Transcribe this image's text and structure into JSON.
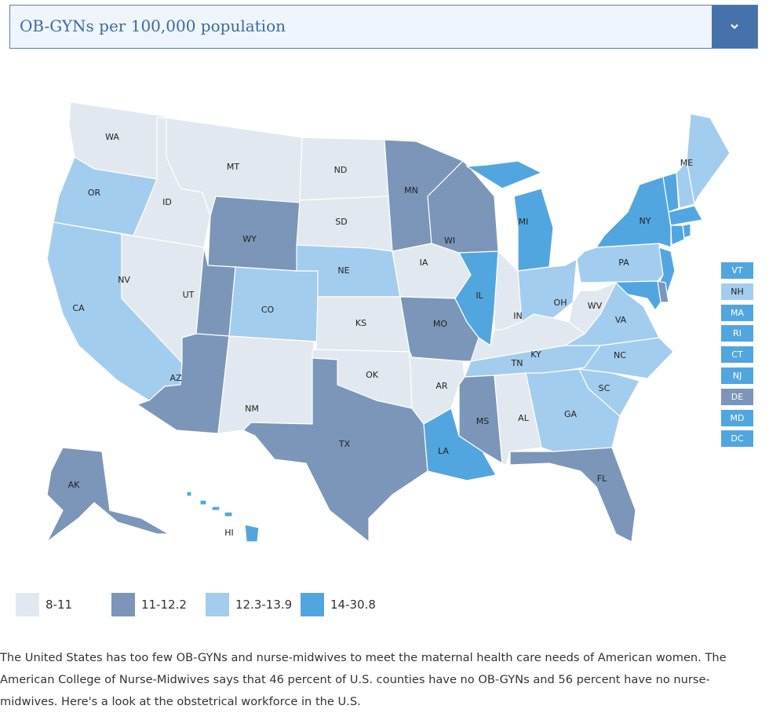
{
  "header": {
    "title": "OB-GYNs per 100,000 population",
    "dropdown_icon": "chevron-down-icon"
  },
  "colors": {
    "bin1": "#e1e8ef",
    "bin2": "#7b96b8",
    "bin3": "#a3cdee",
    "bin4": "#52a6e0",
    "stroke": "#ffffff"
  },
  "legend": [
    {
      "label": "8-11",
      "bin": "bin1"
    },
    {
      "label": "11-12.2",
      "bin": "bin2"
    },
    {
      "label": "12.3-13.9",
      "bin": "bin3"
    },
    {
      "label": "14-30.8",
      "bin": "bin4"
    }
  ],
  "states": [
    {
      "id": "WA",
      "bin": "bin1"
    },
    {
      "id": "OR",
      "bin": "bin3"
    },
    {
      "id": "CA",
      "bin": "bin3"
    },
    {
      "id": "NV",
      "bin": "bin1"
    },
    {
      "id": "ID",
      "bin": "bin1"
    },
    {
      "id": "MT",
      "bin": "bin1"
    },
    {
      "id": "WY",
      "bin": "bin2"
    },
    {
      "id": "UT",
      "bin": "bin2"
    },
    {
      "id": "AZ",
      "bin": "bin2"
    },
    {
      "id": "CO",
      "bin": "bin3"
    },
    {
      "id": "NM",
      "bin": "bin1"
    },
    {
      "id": "ND",
      "bin": "bin1"
    },
    {
      "id": "SD",
      "bin": "bin1"
    },
    {
      "id": "NE",
      "bin": "bin3"
    },
    {
      "id": "KS",
      "bin": "bin1"
    },
    {
      "id": "OK",
      "bin": "bin1"
    },
    {
      "id": "TX",
      "bin": "bin2"
    },
    {
      "id": "MN",
      "bin": "bin2"
    },
    {
      "id": "IA",
      "bin": "bin1"
    },
    {
      "id": "MO",
      "bin": "bin2"
    },
    {
      "id": "AR",
      "bin": "bin1"
    },
    {
      "id": "LA",
      "bin": "bin4"
    },
    {
      "id": "WI",
      "bin": "bin2"
    },
    {
      "id": "IL",
      "bin": "bin4"
    },
    {
      "id": "MI",
      "bin": "bin4"
    },
    {
      "id": "IN",
      "bin": "bin1"
    },
    {
      "id": "OH",
      "bin": "bin3"
    },
    {
      "id": "KY",
      "bin": "bin1"
    },
    {
      "id": "TN",
      "bin": "bin3"
    },
    {
      "id": "MS",
      "bin": "bin2"
    },
    {
      "id": "AL",
      "bin": "bin1"
    },
    {
      "id": "GA",
      "bin": "bin3"
    },
    {
      "id": "FL",
      "bin": "bin2"
    },
    {
      "id": "SC",
      "bin": "bin3"
    },
    {
      "id": "NC",
      "bin": "bin3"
    },
    {
      "id": "VA",
      "bin": "bin3"
    },
    {
      "id": "WV",
      "bin": "bin1"
    },
    {
      "id": "PA",
      "bin": "bin3"
    },
    {
      "id": "NY",
      "bin": "bin4"
    },
    {
      "id": "ME",
      "bin": "bin3"
    },
    {
      "id": "AK",
      "bin": "bin2"
    },
    {
      "id": "HI",
      "bin": "bin4"
    },
    {
      "id": "VT",
      "bin": "bin4"
    },
    {
      "id": "NH",
      "bin": "bin3"
    },
    {
      "id": "MA",
      "bin": "bin4"
    },
    {
      "id": "RI",
      "bin": "bin4"
    },
    {
      "id": "CT",
      "bin": "bin4"
    },
    {
      "id": "NJ",
      "bin": "bin4"
    },
    {
      "id": "DE",
      "bin": "bin2"
    },
    {
      "id": "MD",
      "bin": "bin4"
    },
    {
      "id": "DC",
      "bin": "bin4"
    }
  ],
  "small_states": [
    {
      "id": "VT",
      "bin": "bin4"
    },
    {
      "id": "NH",
      "bin": "bin3"
    },
    {
      "id": "MA",
      "bin": "bin4"
    },
    {
      "id": "RI",
      "bin": "bin4"
    },
    {
      "id": "CT",
      "bin": "bin4"
    },
    {
      "id": "NJ",
      "bin": "bin4"
    },
    {
      "id": "DE",
      "bin": "bin2"
    },
    {
      "id": "MD",
      "bin": "bin4"
    },
    {
      "id": "DC",
      "bin": "bin4"
    }
  ],
  "paragraph": [
    "The United States has too few OB-GYNs and nurse-midwives to meet the maternal health care needs of American women. The",
    "American College of Nurse-Midwives says that 46 percent of U.S. counties have no OB-GYNs and 56 percent have no nurse-",
    "midwives. Here's a look at the obstetrical workforce in the U.S."
  ]
}
